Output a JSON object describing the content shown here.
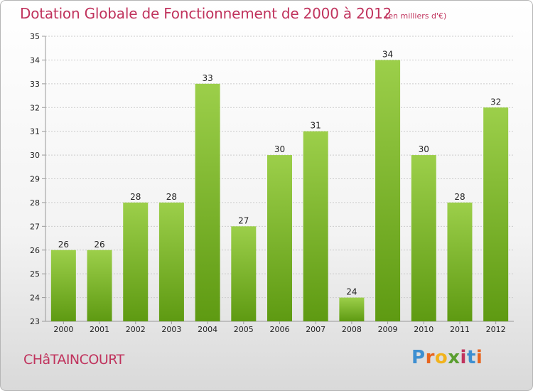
{
  "header": {
    "title": "Dotation Globale de Fonctionnement de 2000 à 2012",
    "unit": "(en milliers d'€)"
  },
  "footer": {
    "commune": "CHâTAINCOURT",
    "logo_letters": [
      "P",
      "r",
      "o",
      "x",
      "i",
      "t",
      "i"
    ],
    "logo_colors": [
      "#3d8fd1",
      "#e8651e",
      "#f2b31c",
      "#5a9e2f",
      "#c0335d",
      "#3d8fd1",
      "#e8651e"
    ]
  },
  "colors": {
    "bar_top": "#9ccf4a",
    "bar_bottom": "#5e9a12",
    "axis": "#999999",
    "grid": "#cccccc",
    "text": "#c0335d"
  },
  "chart_data": {
    "type": "bar",
    "title": "Dotation Globale de Fonctionnement de 2000 à 2012",
    "subtitle": "(en milliers d'€)",
    "xlabel": "",
    "ylabel": "",
    "categories": [
      "2000",
      "2001",
      "2002",
      "2003",
      "2004",
      "2005",
      "2006",
      "2007",
      "2008",
      "2009",
      "2010",
      "2011",
      "2012"
    ],
    "values": [
      26,
      26,
      28,
      28,
      33,
      27,
      30,
      31,
      24,
      34,
      30,
      28,
      32
    ],
    "data_labels": [
      "26",
      "26",
      "28",
      "28",
      "33",
      "27",
      "30",
      "31",
      "24",
      "34",
      "30",
      "28",
      "32"
    ],
    "ylim": [
      23,
      35
    ],
    "yticks": [
      23,
      24,
      25,
      26,
      27,
      28,
      29,
      30,
      31,
      32,
      33,
      34,
      35
    ],
    "grid": true,
    "legend": "none"
  }
}
